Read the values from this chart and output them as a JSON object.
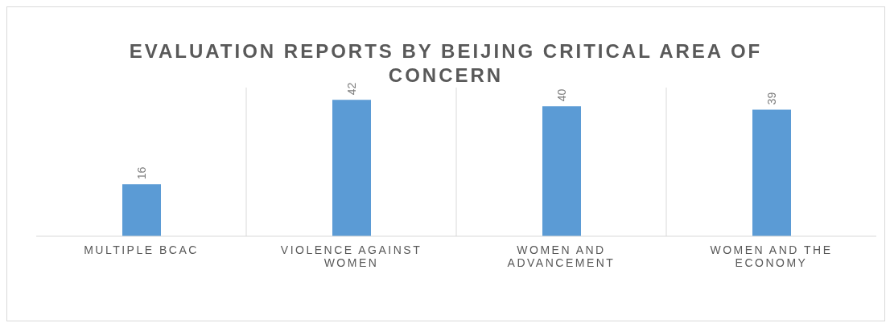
{
  "chart_data": {
    "type": "bar",
    "title": "EVALUATION REPORTS BY BEIJING CRITICAL AREA OF CONCERN",
    "categories": [
      "MULTIPLE BCAC",
      "VIOLENCE AGAINST WOMEN",
      "WOMEN AND ADVANCEMENT",
      "WOMEN AND THE ECONOMY"
    ],
    "values": [
      16,
      42,
      40,
      39
    ],
    "color": "#5b9bd5",
    "data_labels": true,
    "grid": "x"
  }
}
